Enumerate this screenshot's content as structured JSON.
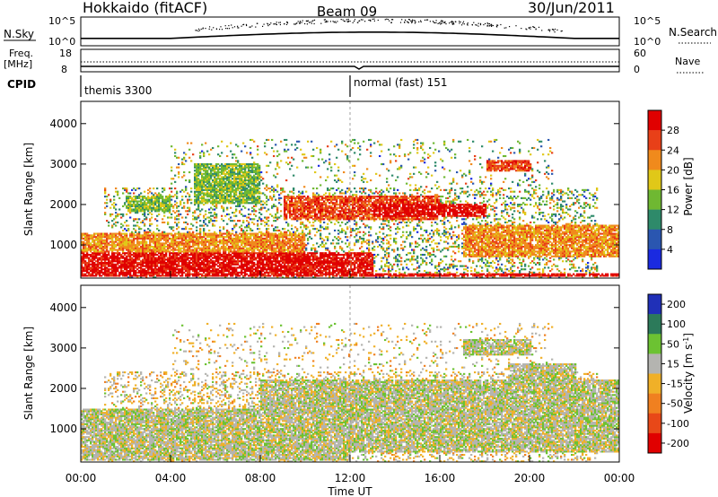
{
  "header": {
    "station": "Hokkaido (fitACF)",
    "beam": "Beam 09",
    "date": "30/Jun/2011"
  },
  "noise_panel": {
    "left_label": "N.Sky",
    "right_label": "N.Search",
    "left_ticks": [
      "10^5",
      "10^0"
    ],
    "right_ticks": [
      "10^5",
      "10^0"
    ]
  },
  "freq_panel": {
    "left_label_1": "Freq.",
    "left_label_2": "[MHz]",
    "left_ticks": [
      "18",
      "8"
    ],
    "right_label": "Nave",
    "right_ticks": [
      "60",
      "0"
    ]
  },
  "cpid_panel": {
    "label": "CPID",
    "modes": [
      {
        "name": "themis 3300",
        "start": "00:00"
      },
      {
        "name": "normal (fast) 151",
        "start": "12:00"
      }
    ]
  },
  "x_axis": {
    "label": "Time UT",
    "ticks": [
      "00:00",
      "04:00",
      "08:00",
      "12:00",
      "16:00",
      "20:00",
      "00:00"
    ]
  },
  "power_panel": {
    "ylabel": "Slant Range [km]",
    "yticks": [
      "1000",
      "2000",
      "3000",
      "4000"
    ],
    "colorbar_label": "Power [dB]",
    "colorbar_ticks": [
      "4",
      "8",
      "12",
      "16",
      "20",
      "24",
      "28"
    ],
    "colors": [
      "#1a2ae0",
      "#2a56b0",
      "#2e8a6a",
      "#6fb832",
      "#e0c818",
      "#f08a1c",
      "#e84018",
      "#e00000"
    ]
  },
  "velocity_panel": {
    "ylabel": "Slant Range [km]",
    "yticks": [
      "1000",
      "2000",
      "3000",
      "4000"
    ],
    "colorbar_label_main": "Velocity [m s",
    "colorbar_label_sup": "-1",
    "colorbar_label_end": "]",
    "colorbar_ticks": [
      "200",
      "100",
      "50",
      "15",
      "-15",
      "-50",
      "-100",
      "-200"
    ],
    "colors": [
      "#2030b8",
      "#2c7a5a",
      "#6cc232",
      "#b4b4b0",
      "#f0b028",
      "#f08020",
      "#e84818",
      "#e00000"
    ]
  },
  "chart_data": {
    "type": "heatmap",
    "x_range_ut_hours": [
      0,
      24
    ],
    "y_range_km": [
      180,
      4550
    ],
    "power_scale_db": [
      0,
      30
    ],
    "velocity_scale_ms": [
      -250,
      250
    ],
    "power_regions": [
      {
        "t": [
          0,
          13
        ],
        "r": [
          200,
          800
        ],
        "power_db": 28
      },
      {
        "t": [
          0,
          10
        ],
        "r": [
          800,
          1300
        ],
        "power_db": 22
      },
      {
        "t": [
          9,
          16
        ],
        "r": [
          1600,
          2200
        ],
        "power_db": 24
      },
      {
        "t": [
          13,
          18
        ],
        "r": [
          1700,
          2000
        ],
        "power_db": 28
      },
      {
        "t": [
          17,
          24
        ],
        "r": [
          700,
          1500
        ],
        "power_db": 20
      },
      {
        "t": [
          18,
          20
        ],
        "r": [
          2800,
          3100
        ],
        "power_db": 24
      },
      {
        "t": [
          2,
          4
        ],
        "r": [
          1800,
          2200
        ],
        "power_db": 12
      },
      {
        "t": [
          5,
          8
        ],
        "r": [
          2000,
          3000
        ],
        "power_db": 12
      },
      {
        "t": [
          0,
          24
        ],
        "r": [
          200,
          300
        ],
        "power_db": 28
      }
    ],
    "velocity_regions": [
      {
        "t": [
          0,
          24
        ],
        "r": [
          400,
          1500
        ],
        "velocity_ms": 0
      },
      {
        "t": [
          0,
          12
        ],
        "r": [
          200,
          400
        ],
        "velocity_ms": 30
      },
      {
        "t": [
          17,
          20
        ],
        "r": [
          2800,
          3200
        ],
        "velocity_ms": 40
      },
      {
        "t": [
          8,
          24
        ],
        "r": [
          1500,
          2200
        ],
        "velocity_ms": 0
      },
      {
        "t": [
          19,
          22
        ],
        "r": [
          2200,
          2600
        ],
        "velocity_ms": 40
      }
    ]
  }
}
